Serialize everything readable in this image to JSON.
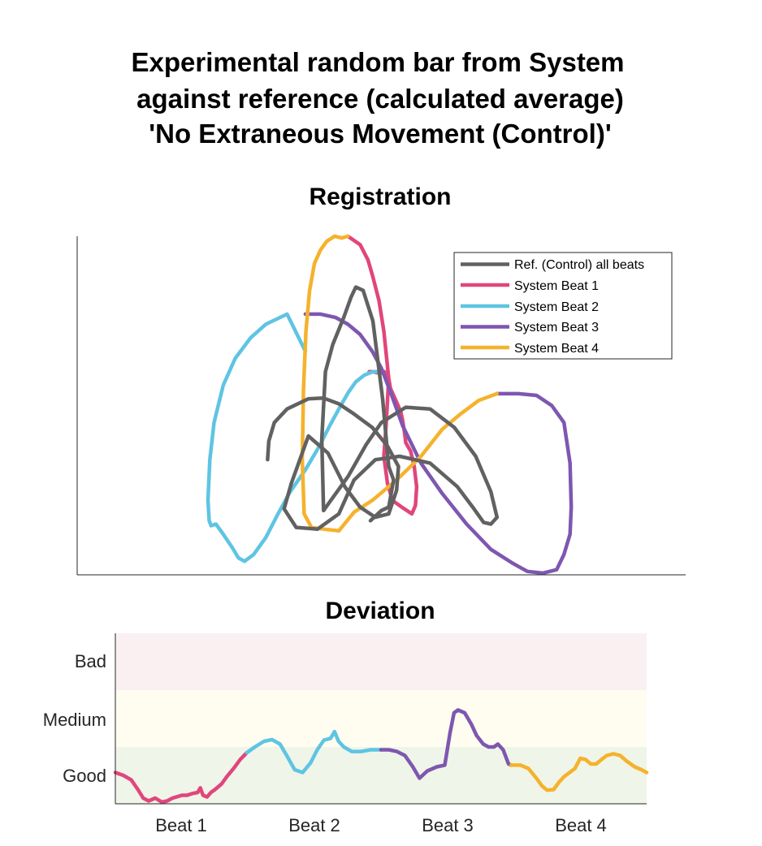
{
  "title_lines": [
    "Experimental random bar from System",
    "against reference (calculated average)",
    "'No Extraneous Movement (Control)'"
  ],
  "colors": {
    "reference": "#616161",
    "beat1": "#E0467C",
    "beat2": "#5FC4E3",
    "beat3": "#7E57B0",
    "beat4": "#F5B22C",
    "band_bad": "#FAF0F2",
    "band_medium": "#FEFDF0",
    "band_good": "#EFF5E8"
  },
  "chart_data": [
    {
      "type": "line",
      "title": "Registration",
      "xlim": [
        0,
        100
      ],
      "ylim": [
        0,
        100
      ],
      "axes_visible": [
        "left",
        "bottom"
      ],
      "legend_placement": "top-right",
      "legend": [
        "Ref. (Control) all beats",
        "System Beat 1",
        "System Beat 2",
        "System Beat 3",
        "System Beat 4"
      ],
      "series": [
        {
          "name": "Ref. (Control) all beats",
          "color_key": "reference",
          "x": [
            31.3,
            31.5,
            32.4,
            34.5,
            38.0,
            40.5,
            43.0,
            45.5,
            48.5,
            51.0,
            52.8,
            52.5,
            51.2,
            49.0,
            46.5,
            44.0,
            41.2,
            38.0,
            35.2,
            34.0,
            36.0,
            39.5,
            43.0,
            45.5,
            49.0,
            53.0,
            58.0,
            62.5,
            65.0,
            66.8,
            68.0,
            69.0,
            68.0,
            65.5,
            62.0,
            58.0,
            54.0,
            50.0,
            47.5,
            44.5,
            41.5,
            40.5,
            40.2,
            40.8,
            42.0,
            43.8,
            45.0,
            45.8,
            47.0,
            48.6,
            50.2,
            51.2,
            52.0,
            51.2,
            50.0,
            48.2
          ],
          "y": [
            34.0,
            39.5,
            45.0,
            49.0,
            52.0,
            52.2,
            50.5,
            47.5,
            43.5,
            38.0,
            32.0,
            25.0,
            18.0,
            17.0,
            20.0,
            26.0,
            36.0,
            41.0,
            27.0,
            19.5,
            14.0,
            13.5,
            18.0,
            28.0,
            34.0,
            35.0,
            33.0,
            26.0,
            20.0,
            15.5,
            15.0,
            17.0,
            24.5,
            35.0,
            43.5,
            49.0,
            49.5,
            45.0,
            38.5,
            29.0,
            21.5,
            19.0,
            40.0,
            60.0,
            68.0,
            76.0,
            82.0,
            85.0,
            84.0,
            75.0,
            52.0,
            32.0,
            28.0,
            20.0,
            19.0,
            16.0
          ]
        },
        {
          "name": "System Beat 1",
          "color_key": "beat1",
          "x": [
            44.5,
            46.5,
            47.8,
            48.6,
            49.6,
            50.4,
            51.2,
            50.8,
            50.4,
            51.0,
            51.8,
            53.5,
            55.0,
            55.6,
            55.8,
            55.4,
            54.8,
            54.0,
            53.8,
            53.5,
            53.2,
            52.5,
            52.0,
            51.5,
            51.2,
            50.5,
            49.8,
            48.6,
            48.0
          ],
          "y": [
            100.0,
            97.5,
            93.0,
            88.0,
            81.0,
            72.0,
            58.0,
            45.0,
            35.0,
            27.0,
            22.0,
            19.8,
            18.0,
            20.5,
            26.0,
            32.0,
            36.5,
            39.0,
            42.0,
            45.5,
            48.0,
            51.0,
            53.0,
            55.0,
            58.0,
            60.0,
            59.5,
            60.0,
            60.0
          ]
        },
        {
          "name": "System Beat 2",
          "color_key": "beat2",
          "x": [
            49.8,
            48.6,
            47.2,
            45.8,
            44.6,
            43.0,
            41.5,
            39.8,
            37.5,
            35.0,
            33.0,
            31.0,
            29.0,
            27.5,
            26.5,
            25.5,
            24.0,
            22.8,
            22.0,
            21.7,
            21.5,
            21.8,
            22.5,
            24.0,
            26.0,
            28.5,
            31.0,
            34.5,
            37.5
          ],
          "y": [
            60.0,
            60.0,
            59.0,
            57.0,
            54.0,
            49.0,
            44.0,
            38.0,
            31.0,
            24.5,
            18.0,
            11.0,
            6.0,
            4.0,
            5.0,
            8.0,
            12.0,
            15.0,
            14.5,
            16.0,
            22.0,
            34.0,
            45.0,
            56.0,
            64.0,
            70.0,
            74.0,
            77.0,
            66.0
          ]
        },
        {
          "name": "System Beat 3",
          "color_key": "beat3",
          "x": [
            37.5,
            40.0,
            42.5,
            44.5,
            46.5,
            48.5,
            50.0,
            51.5,
            53.5,
            56.5,
            60.0,
            64.0,
            68.0,
            71.5,
            74.0,
            76.5,
            78.8,
            80.0,
            81.0,
            81.2,
            81.0,
            80.0,
            78.0,
            75.5,
            72.5,
            69.0
          ],
          "y": [
            77.0,
            77.0,
            76.0,
            74.0,
            71.0,
            66.0,
            61.0,
            54.0,
            44.0,
            33.0,
            24.0,
            15.0,
            7.5,
            3.5,
            1.0,
            0.5,
            1.5,
            6.0,
            12.0,
            20.0,
            33.0,
            45.0,
            50.0,
            53.0,
            53.5,
            53.5
          ]
        },
        {
          "name": "System Beat 4",
          "color_key": "beat4",
          "x": [
            69.0,
            66.0,
            63.0,
            60.0,
            56.5,
            52.5,
            48.5,
            45.5,
            43.0,
            40.5,
            38.5,
            37.3,
            37.0,
            37.2,
            37.6,
            38.2,
            39.0,
            40.0,
            41.0,
            42.3,
            43.5,
            44.5
          ],
          "y": [
            53.5,
            51.5,
            47.5,
            43.0,
            35.0,
            28.0,
            22.0,
            18.5,
            13.0,
            13.5,
            14.0,
            18.0,
            34.0,
            55.0,
            72.0,
            84.0,
            92.0,
            96.0,
            98.5,
            100.0,
            99.5,
            100.0
          ]
        }
      ]
    },
    {
      "type": "line",
      "title": "Deviation",
      "categories": [
        "Beat 1",
        "Beat 2",
        "Beat 3",
        "Beat 4"
      ],
      "yticks": [
        "Good",
        "Medium",
        "Bad"
      ],
      "xlim": [
        0,
        4
      ],
      "ylim": [
        0,
        3
      ],
      "bands": [
        {
          "label": "Good",
          "from": 0,
          "to": 1,
          "color_key": "band_good"
        },
        {
          "label": "Medium",
          "from": 1,
          "to": 2,
          "color_key": "band_medium"
        },
        {
          "label": "Bad",
          "from": 2,
          "to": 3,
          "color_key": "band_bad"
        }
      ],
      "series": [
        {
          "name": "System Beat 1",
          "color_key": "beat1",
          "x": [
            0.0,
            0.06,
            0.12,
            0.17,
            0.21,
            0.25,
            0.3,
            0.35,
            0.39,
            0.43,
            0.46,
            0.5,
            0.54,
            0.58,
            0.62,
            0.64,
            0.66,
            0.69,
            0.72,
            0.75,
            0.8,
            0.84,
            0.89,
            0.94,
            0.99
          ],
          "y": [
            0.55,
            0.5,
            0.42,
            0.25,
            0.1,
            0.05,
            0.1,
            0.03,
            0.05,
            0.1,
            0.12,
            0.15,
            0.15,
            0.18,
            0.2,
            0.28,
            0.15,
            0.12,
            0.2,
            0.25,
            0.35,
            0.48,
            0.62,
            0.78,
            0.9
          ]
        },
        {
          "name": "System Beat 2",
          "color_key": "beat2",
          "x": [
            0.99,
            1.05,
            1.12,
            1.18,
            1.24,
            1.29,
            1.35,
            1.41,
            1.47,
            1.52,
            1.57,
            1.62,
            1.65,
            1.68,
            1.72,
            1.78,
            1.85,
            1.92,
            2.0
          ],
          "y": [
            0.9,
            1.0,
            1.1,
            1.13,
            1.05,
            0.85,
            0.6,
            0.55,
            0.72,
            0.95,
            1.12,
            1.15,
            1.27,
            1.1,
            1.0,
            0.92,
            0.92,
            0.95,
            0.95
          ]
        },
        {
          "name": "System Beat 3",
          "color_key": "beat3",
          "x": [
            2.0,
            2.06,
            2.12,
            2.18,
            2.24,
            2.29,
            2.35,
            2.42,
            2.48,
            2.52,
            2.55,
            2.58,
            2.63,
            2.68,
            2.72,
            2.77,
            2.81,
            2.85,
            2.88,
            2.92,
            2.96,
            2.98
          ],
          "y": [
            0.95,
            0.95,
            0.92,
            0.85,
            0.65,
            0.45,
            0.58,
            0.65,
            0.68,
            1.25,
            1.6,
            1.65,
            1.6,
            1.4,
            1.2,
            1.05,
            1.0,
            1.0,
            1.05,
            0.95,
            0.7,
            0.68
          ]
        },
        {
          "name": "System Beat 4",
          "color_key": "beat4",
          "x": [
            2.98,
            3.05,
            3.11,
            3.17,
            3.21,
            3.25,
            3.3,
            3.34,
            3.38,
            3.42,
            3.46,
            3.5,
            3.54,
            3.58,
            3.62,
            3.66,
            3.7,
            3.75,
            3.8,
            3.85,
            3.91,
            3.96,
            4.0
          ],
          "y": [
            0.68,
            0.68,
            0.62,
            0.45,
            0.32,
            0.24,
            0.25,
            0.38,
            0.48,
            0.55,
            0.62,
            0.8,
            0.78,
            0.7,
            0.7,
            0.78,
            0.85,
            0.88,
            0.85,
            0.75,
            0.65,
            0.6,
            0.55
          ]
        }
      ]
    }
  ]
}
